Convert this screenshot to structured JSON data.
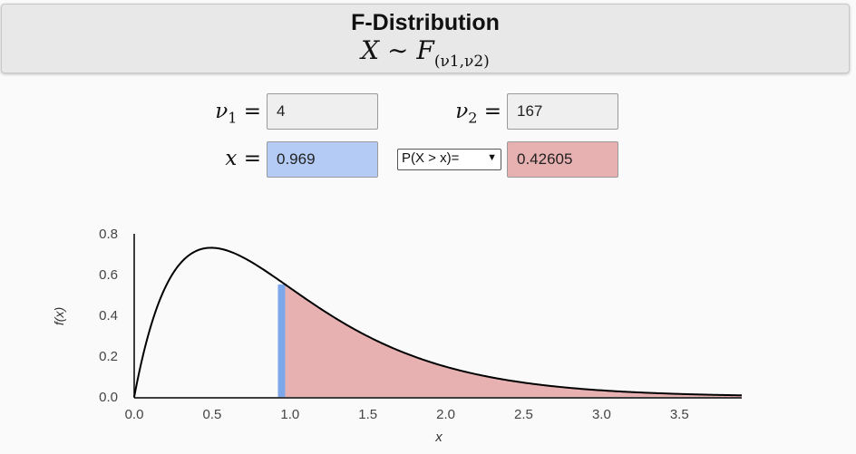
{
  "header": {
    "title": "F-Distribution",
    "formula_var": "X",
    "formula_tilde": "∼",
    "formula_F": "F",
    "formula_sub": "(ν1,ν2)"
  },
  "inputs": {
    "nu1_label": "ν",
    "nu1_sub": "1",
    "nu1_eq": "=",
    "nu1_value": "4",
    "nu2_label": "ν",
    "nu2_sub": "2",
    "nu2_eq": "=",
    "nu2_value": "167",
    "x_label": "x",
    "x_eq": "=",
    "x_value": "0.969",
    "prob_select": "P(X > x)=",
    "prob_value": "0.42605"
  },
  "colors": {
    "x_field": "#b3cbf5",
    "prob_field": "#e8b1b1",
    "shade": "#e8b1b1",
    "x_marker": "#7ea6ea",
    "curve": "#000000"
  },
  "chart_data": {
    "type": "area",
    "distribution": "F",
    "df1": 4,
    "df2": 167,
    "x_value": 0.969,
    "shaded_region": "right-tail",
    "xlabel": "x",
    "ylabel": "f(x)",
    "xlim": [
      0,
      3.9
    ],
    "ylim": [
      0,
      0.8
    ],
    "x_ticks": [
      "0.0",
      "0.5",
      "1.0",
      "1.5",
      "2.0",
      "2.5",
      "3.0",
      "3.5"
    ],
    "y_ticks": [
      "0.0",
      "0.2",
      "0.4",
      "0.6",
      "0.8"
    ],
    "grid": false
  }
}
